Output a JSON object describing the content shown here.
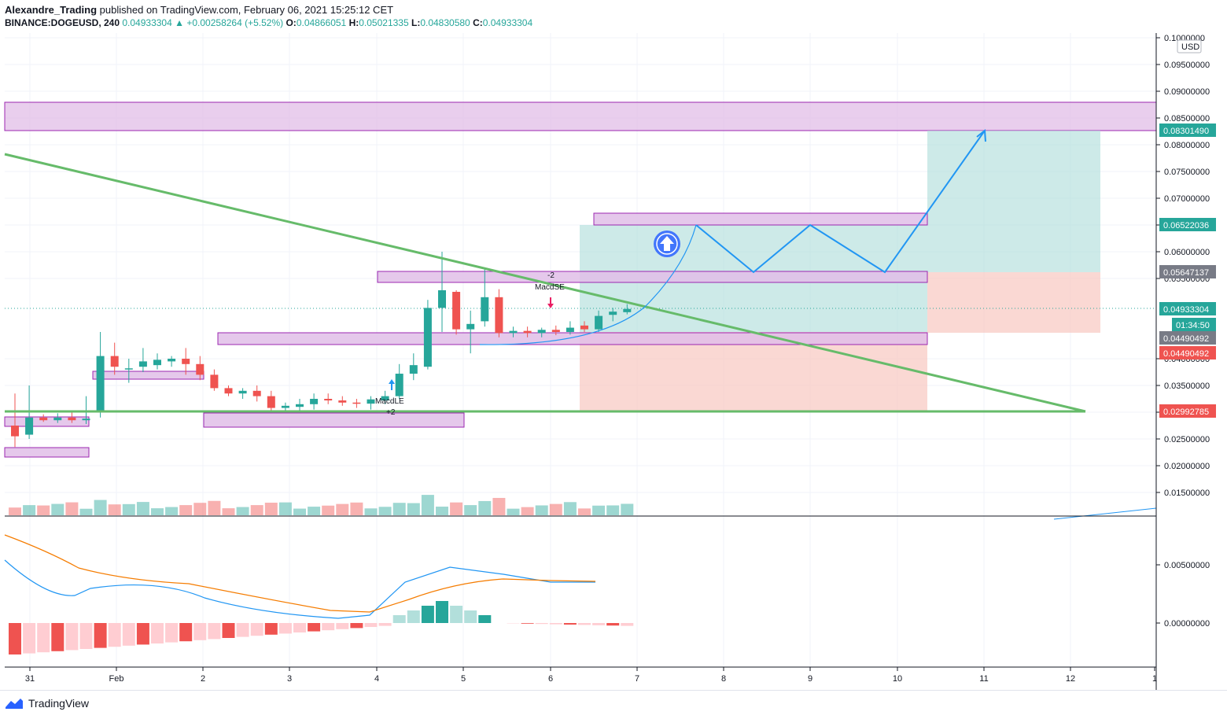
{
  "header": {
    "author": "Alexandre_Trading",
    "published": "published on TradingView.com, February 06, 2021 15:25:12 CET",
    "symbol": "BINANCE:DOGEUSD, 240",
    "last": "0.04933304",
    "change": "+0.00258264 (+5.52%)",
    "o_label": "O:",
    "o": "0.04866051",
    "h_label": "H:",
    "h": "0.05021335",
    "l_label": "L:",
    "l": "0.04830580",
    "c_label": "C:",
    "c": "0.04933304"
  },
  "footer": {
    "brand": "TradingView"
  },
  "chart_data": {
    "type": "candlestick",
    "symbol": "BINANCE:DOGEUSD",
    "interval": "240",
    "currency": "USD",
    "x_ticks": [
      "31",
      "Feb",
      "2",
      "3",
      "4",
      "5",
      "6",
      "7",
      "8",
      "9",
      "10",
      "11",
      "12",
      "1"
    ],
    "price_ticks": [
      "0.1000000",
      "0.09500000",
      "0.09000000",
      "0.08500000",
      "0.08000000",
      "0.07500000",
      "0.07000000",
      "0.06500000",
      "0.06000000",
      "0.05500000",
      "0.04000000",
      "0.03500000",
      "0.03000000",
      "0.02500000",
      "0.02000000",
      "0.01500000"
    ],
    "macd_ticks": [
      "0.00500000",
      "0.00000000"
    ],
    "price_labels": [
      {
        "value": "0.08301490",
        "color": "#26a69a"
      },
      {
        "value": "0.06522036",
        "color": "#26a69a"
      },
      {
        "value": "0.05647137",
        "color": "#787b86"
      },
      {
        "value": "0.04933304",
        "color": "#26a69a"
      },
      {
        "value": "01:34:50",
        "color": "#26a69a"
      },
      {
        "value": "0.04490492",
        "color": "#787b86"
      },
      {
        "value": "0.04490492",
        "color": "#ef5350"
      },
      {
        "value": "0.02992785",
        "color": "#ef5350"
      }
    ],
    "candles": [
      {
        "t": 0,
        "o": 0.0275,
        "h": 0.0335,
        "l": 0.0235,
        "c": 0.0255
      },
      {
        "t": 1,
        "o": 0.0258,
        "h": 0.035,
        "l": 0.025,
        "c": 0.029
      },
      {
        "t": 2,
        "o": 0.029,
        "h": 0.0296,
        "l": 0.0282,
        "c": 0.0285
      },
      {
        "t": 3,
        "o": 0.0285,
        "h": 0.0298,
        "l": 0.028,
        "c": 0.029
      },
      {
        "t": 4,
        "o": 0.029,
        "h": 0.03,
        "l": 0.028,
        "c": 0.0285
      },
      {
        "t": 5,
        "o": 0.0285,
        "h": 0.033,
        "l": 0.0278,
        "c": 0.0288
      },
      {
        "t": 6,
        "o": 0.03,
        "h": 0.045,
        "l": 0.029,
        "c": 0.0405
      },
      {
        "t": 7,
        "o": 0.0405,
        "h": 0.043,
        "l": 0.037,
        "c": 0.0385
      },
      {
        "t": 8,
        "o": 0.038,
        "h": 0.04,
        "l": 0.0355,
        "c": 0.0382
      },
      {
        "t": 9,
        "o": 0.0385,
        "h": 0.042,
        "l": 0.0375,
        "c": 0.0395
      },
      {
        "t": 10,
        "o": 0.0388,
        "h": 0.041,
        "l": 0.038,
        "c": 0.0398
      },
      {
        "t": 11,
        "o": 0.0395,
        "h": 0.0405,
        "l": 0.0385,
        "c": 0.04
      },
      {
        "t": 12,
        "o": 0.04,
        "h": 0.042,
        "l": 0.037,
        "c": 0.039
      },
      {
        "t": 13,
        "o": 0.039,
        "h": 0.0405,
        "l": 0.036,
        "c": 0.037
      },
      {
        "t": 14,
        "o": 0.037,
        "h": 0.038,
        "l": 0.034,
        "c": 0.0345
      },
      {
        "t": 15,
        "o": 0.0345,
        "h": 0.035,
        "l": 0.033,
        "c": 0.0335
      },
      {
        "t": 16,
        "o": 0.0335,
        "h": 0.0345,
        "l": 0.0325,
        "c": 0.034
      },
      {
        "t": 17,
        "o": 0.034,
        "h": 0.035,
        "l": 0.032,
        "c": 0.033
      },
      {
        "t": 18,
        "o": 0.033,
        "h": 0.034,
        "l": 0.0302,
        "c": 0.0308
      },
      {
        "t": 19,
        "o": 0.0308,
        "h": 0.0318,
        "l": 0.03,
        "c": 0.0312
      },
      {
        "t": 20,
        "o": 0.031,
        "h": 0.0325,
        "l": 0.03,
        "c": 0.0315
      },
      {
        "t": 21,
        "o": 0.0315,
        "h": 0.0335,
        "l": 0.0305,
        "c": 0.0325
      },
      {
        "t": 22,
        "o": 0.0325,
        "h": 0.0335,
        "l": 0.0315,
        "c": 0.0322
      },
      {
        "t": 23,
        "o": 0.0322,
        "h": 0.033,
        "l": 0.0312,
        "c": 0.0318
      },
      {
        "t": 24,
        "o": 0.0318,
        "h": 0.0325,
        "l": 0.0308,
        "c": 0.0316
      },
      {
        "t": 25,
        "o": 0.0316,
        "h": 0.033,
        "l": 0.0305,
        "c": 0.0324
      },
      {
        "t": 26,
        "o": 0.0322,
        "h": 0.034,
        "l": 0.0315,
        "c": 0.033
      },
      {
        "t": 27,
        "o": 0.033,
        "h": 0.039,
        "l": 0.0325,
        "c": 0.0372
      },
      {
        "t": 28,
        "o": 0.0372,
        "h": 0.041,
        "l": 0.036,
        "c": 0.0388
      },
      {
        "t": 29,
        "o": 0.0385,
        "h": 0.051,
        "l": 0.038,
        "c": 0.0495
      },
      {
        "t": 30,
        "o": 0.0495,
        "h": 0.06,
        "l": 0.045,
        "c": 0.0528
      },
      {
        "t": 31,
        "o": 0.0525,
        "h": 0.0528,
        "l": 0.0445,
        "c": 0.0455
      },
      {
        "t": 32,
        "o": 0.0455,
        "h": 0.049,
        "l": 0.041,
        "c": 0.0465
      },
      {
        "t": 33,
        "o": 0.047,
        "h": 0.057,
        "l": 0.046,
        "c": 0.0515
      },
      {
        "t": 34,
        "o": 0.0515,
        "h": 0.053,
        "l": 0.044,
        "c": 0.0448
      },
      {
        "t": 35,
        "o": 0.0448,
        "h": 0.046,
        "l": 0.044,
        "c": 0.0452
      },
      {
        "t": 36,
        "o": 0.0452,
        "h": 0.046,
        "l": 0.044,
        "c": 0.0448
      },
      {
        "t": 37,
        "o": 0.0448,
        "h": 0.0458,
        "l": 0.044,
        "c": 0.0454
      },
      {
        "t": 38,
        "o": 0.0454,
        "h": 0.0462,
        "l": 0.0444,
        "c": 0.045
      },
      {
        "t": 39,
        "o": 0.045,
        "h": 0.047,
        "l": 0.0445,
        "c": 0.0458
      },
      {
        "t": 40,
        "o": 0.0462,
        "h": 0.047,
        "l": 0.045,
        "c": 0.0455
      },
      {
        "t": 41,
        "o": 0.0455,
        "h": 0.049,
        "l": 0.045,
        "c": 0.048
      },
      {
        "t": 42,
        "o": 0.0482,
        "h": 0.0495,
        "l": 0.047,
        "c": 0.0488
      },
      {
        "t": 43,
        "o": 0.0487,
        "h": 0.0502,
        "l": 0.0483,
        "c": 0.0493
      }
    ],
    "volume_color_up": "#26a69a",
    "volume_color_down": "#ef5350",
    "indicator": "MACD",
    "annotations": [
      "MacdLE",
      "+2",
      "MacdSE",
      "-2"
    ]
  }
}
